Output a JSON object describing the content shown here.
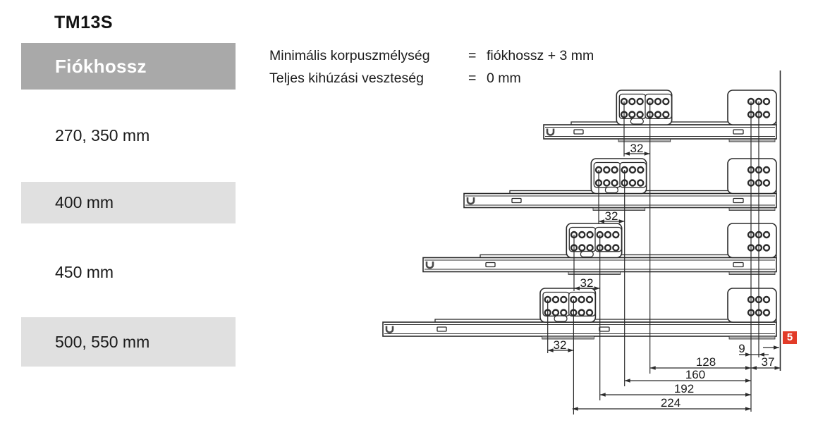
{
  "title": "TM13S",
  "table": {
    "header": "Fiókhossz",
    "rows": [
      {
        "label": "270, 350 mm",
        "highlighted": false
      },
      {
        "label": "400 mm",
        "highlighted": true
      },
      {
        "label": "450 mm",
        "highlighted": false
      },
      {
        "label": "500, 550 mm",
        "highlighted": true
      }
    ]
  },
  "specs": [
    {
      "label": "Minimális korpuszmélység",
      "operator": "=",
      "value": "fiókhossz + 3 mm"
    },
    {
      "label": "Teljes kihúzási veszteség",
      "operator": "=",
      "value": "0 mm"
    }
  ],
  "drawing": {
    "hole_pitch_dims": [
      "32",
      "32",
      "32",
      "32"
    ],
    "bottom_dims": {
      "d128": "128",
      "d160": "160",
      "d192": "192",
      "d224": "224"
    },
    "front_dims": {
      "d9": "9",
      "d37": "37"
    },
    "callout": {
      "value": "5",
      "color": "#e23b28"
    },
    "colors": {
      "line": "#2b2b2b",
      "header_bg": "#a9a9a9",
      "band_bg": "#e0e0e0"
    }
  }
}
